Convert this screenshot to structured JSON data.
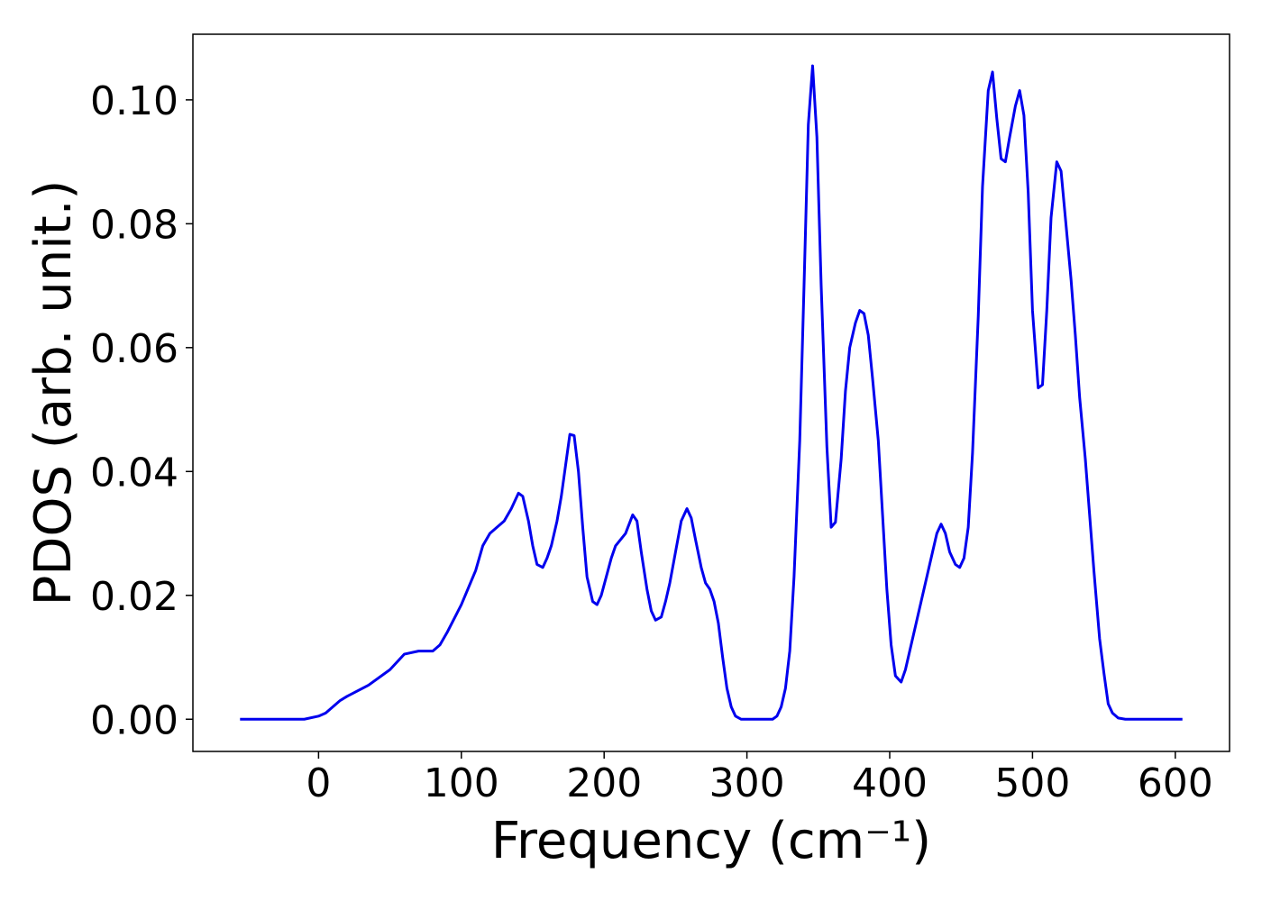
{
  "chart_data": {
    "type": "line",
    "x_label": "Frequency (cm⁻¹)",
    "y_label": "PDOS (arb. unit.)",
    "xlim": [
      -88,
      638
    ],
    "xticks": [
      0,
      100,
      200,
      300,
      400,
      500,
      600
    ],
    "ylim": [
      -0.0052,
      0.1106
    ],
    "yticks": [
      {
        "value": 0,
        "label": "0.00"
      },
      {
        "value": 0.02,
        "label": "0.02"
      },
      {
        "value": 0.04,
        "label": "0.04"
      },
      {
        "value": 0.06,
        "label": "0.06"
      },
      {
        "value": 0.08,
        "label": "0.08"
      },
      {
        "value": 0.1,
        "label": "0.10"
      }
    ],
    "grid": false,
    "series": [
      {
        "color": "#0000ee",
        "x": [
          -55,
          -10,
          0,
          5,
          10,
          15,
          20,
          35,
          50,
          60,
          70,
          80,
          85,
          90,
          100,
          110,
          115,
          120,
          125,
          130,
          135,
          140,
          143,
          147,
          150,
          153,
          157,
          160,
          163,
          167,
          170,
          173,
          176,
          179,
          182,
          185,
          188,
          192,
          195,
          198,
          205,
          208,
          215,
          220,
          223,
          226,
          230,
          233,
          236,
          240,
          243,
          246,
          250,
          254,
          258,
          261,
          264,
          268,
          271,
          274,
          277,
          280,
          283,
          286,
          289,
          292,
          296,
          318,
          321,
          324,
          327,
          330,
          333,
          337,
          340,
          343,
          346,
          349,
          352,
          356,
          359,
          362,
          366,
          369,
          372,
          376,
          379,
          382,
          385,
          388,
          392,
          395,
          398,
          401,
          404,
          408,
          411,
          414,
          418,
          422,
          426,
          430,
          433,
          436,
          439,
          442,
          446,
          449,
          452,
          455,
          458,
          462,
          465,
          469,
          472,
          475,
          478,
          481,
          484,
          488,
          491,
          494,
          497,
          500,
          504,
          507,
          510,
          513,
          517,
          520,
          523,
          527,
          530,
          533,
          537,
          540,
          543,
          547,
          550,
          553,
          556,
          560,
          565,
          605
        ],
        "values": [
          0,
          0,
          0.0005,
          0.001,
          0.002,
          0.003,
          0.0037,
          0.0055,
          0.008,
          0.0105,
          0.011,
          0.011,
          0.012,
          0.014,
          0.0185,
          0.024,
          0.028,
          0.03,
          0.031,
          0.032,
          0.034,
          0.0365,
          0.036,
          0.032,
          0.028,
          0.025,
          0.0245,
          0.026,
          0.028,
          0.032,
          0.036,
          0.041,
          0.046,
          0.0458,
          0.04,
          0.031,
          0.023,
          0.019,
          0.0185,
          0.02,
          0.026,
          0.028,
          0.03,
          0.033,
          0.032,
          0.027,
          0.021,
          0.0175,
          0.016,
          0.0165,
          0.019,
          0.022,
          0.027,
          0.032,
          0.034,
          0.0325,
          0.029,
          0.0245,
          0.022,
          0.021,
          0.019,
          0.0155,
          0.01,
          0.005,
          0.002,
          0.0005,
          0,
          0,
          0.0005,
          0.002,
          0.005,
          0.011,
          0.023,
          0.045,
          0.07,
          0.096,
          0.1055,
          0.094,
          0.07,
          0.044,
          0.031,
          0.0318,
          0.042,
          0.053,
          0.06,
          0.064,
          0.066,
          0.0655,
          0.062,
          0.055,
          0.045,
          0.033,
          0.021,
          0.012,
          0.007,
          0.006,
          0.008,
          0.011,
          0.015,
          0.019,
          0.023,
          0.027,
          0.03,
          0.0315,
          0.03,
          0.027,
          0.025,
          0.0245,
          0.026,
          0.031,
          0.043,
          0.065,
          0.086,
          0.1015,
          0.1045,
          0.097,
          0.0905,
          0.09,
          0.094,
          0.099,
          0.1015,
          0.0975,
          0.085,
          0.066,
          0.0535,
          0.054,
          0.066,
          0.081,
          0.09,
          0.0885,
          0.081,
          0.071,
          0.062,
          0.052,
          0.042,
          0.033,
          0.024,
          0.013,
          0.0075,
          0.0025,
          0.001,
          0.0002,
          0,
          0
        ]
      }
    ]
  }
}
